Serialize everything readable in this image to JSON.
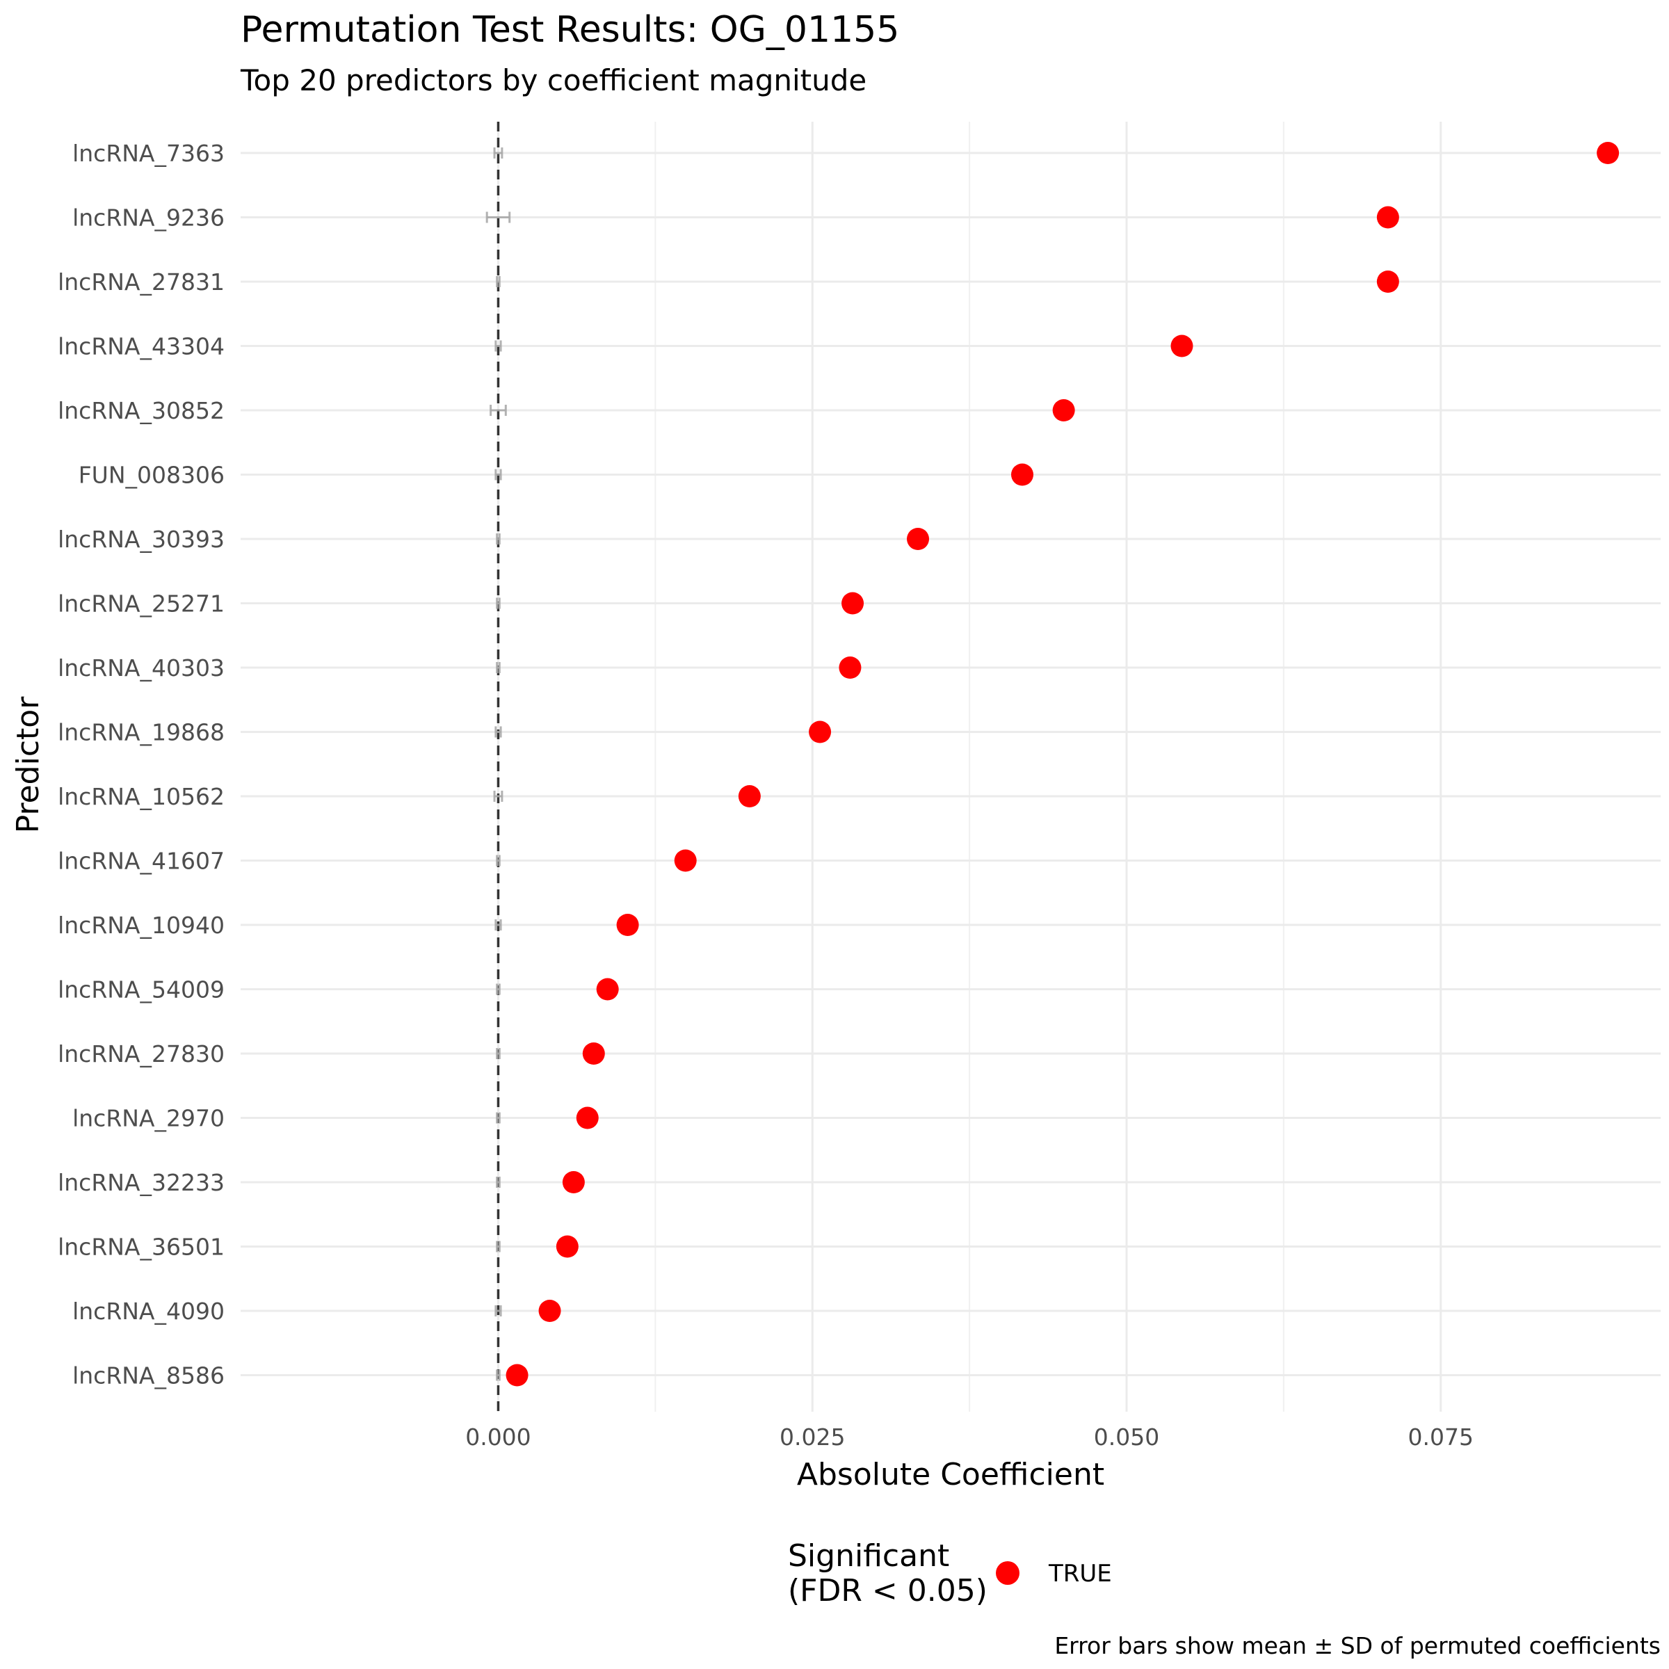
{
  "chart_data": {
    "type": "scatter",
    "title": "Permutation Test Results: OG_01155",
    "subtitle": "Top 20 predictors by coefficient magnitude",
    "xlabel": "Absolute Coefficient",
    "ylabel": "Predictor",
    "xlim": [
      -0.0205,
      0.0925
    ],
    "x_ticks": [
      0.0,
      0.025,
      0.05,
      0.075
    ],
    "x_tick_labels": [
      "0.000",
      "0.025",
      "0.050",
      "0.075"
    ],
    "reference_line_x": 0.0,
    "grid": true,
    "legend": {
      "title_line1": "Significant",
      "title_line2": "(FDR < 0.05)",
      "entries": [
        {
          "label": "TRUE",
          "color": "#ff0000"
        }
      ],
      "placement": "bottom"
    },
    "caption": "Error bars show mean ± SD of permuted coefficients",
    "point_color": "#ff0000",
    "errorbar_color": "#aaaaaa",
    "predictors": [
      {
        "name": "lncRNA_7363",
        "value": 0.0883,
        "null_mean": 0.0,
        "null_sd": 0.0003
      },
      {
        "name": "lncRNA_9236",
        "value": 0.0708,
        "null_mean": 0.0,
        "null_sd": 0.0009
      },
      {
        "name": "lncRNA_27831",
        "value": 0.0708,
        "null_mean": 0.0,
        "null_sd": 0.0001
      },
      {
        "name": "lncRNA_43304",
        "value": 0.0544,
        "null_mean": 0.0,
        "null_sd": 0.0002
      },
      {
        "name": "lncRNA_30852",
        "value": 0.045,
        "null_mean": 0.0,
        "null_sd": 0.0006
      },
      {
        "name": "FUN_008306",
        "value": 0.0417,
        "null_mean": 0.0,
        "null_sd": 0.0002
      },
      {
        "name": "lncRNA_30393",
        "value": 0.0334,
        "null_mean": 0.0,
        "null_sd": 0.0001
      },
      {
        "name": "lncRNA_25271",
        "value": 0.0282,
        "null_mean": 0.0,
        "null_sd": 0.0001
      },
      {
        "name": "lncRNA_40303",
        "value": 0.028,
        "null_mean": 0.0,
        "null_sd": 0.0001
      },
      {
        "name": "lncRNA_19868",
        "value": 0.0256,
        "null_mean": 0.0,
        "null_sd": 0.0002
      },
      {
        "name": "lncRNA_10562",
        "value": 0.02,
        "null_mean": 0.0,
        "null_sd": 0.0003
      },
      {
        "name": "lncRNA_41607",
        "value": 0.0149,
        "null_mean": 0.0,
        "null_sd": 0.0001
      },
      {
        "name": "lncRNA_10940",
        "value": 0.0103,
        "null_mean": 0.0,
        "null_sd": 0.0002
      },
      {
        "name": "lncRNA_54009",
        "value": 0.0087,
        "null_mean": 0.0,
        "null_sd": 0.0001
      },
      {
        "name": "lncRNA_27830",
        "value": 0.0076,
        "null_mean": 0.0,
        "null_sd": 0.0001
      },
      {
        "name": "lncRNA_2970",
        "value": 0.0071,
        "null_mean": 0.0,
        "null_sd": 0.0001
      },
      {
        "name": "lncRNA_32233",
        "value": 0.006,
        "null_mean": 0.0,
        "null_sd": 0.0001
      },
      {
        "name": "lncRNA_36501",
        "value": 0.0055,
        "null_mean": 0.0,
        "null_sd": 0.0001
      },
      {
        "name": "lncRNA_4090",
        "value": 0.0041,
        "null_mean": 0.0,
        "null_sd": 0.0002
      },
      {
        "name": "lncRNA_8586",
        "value": 0.0015,
        "null_mean": 0.0,
        "null_sd": 0.0001
      }
    ]
  }
}
